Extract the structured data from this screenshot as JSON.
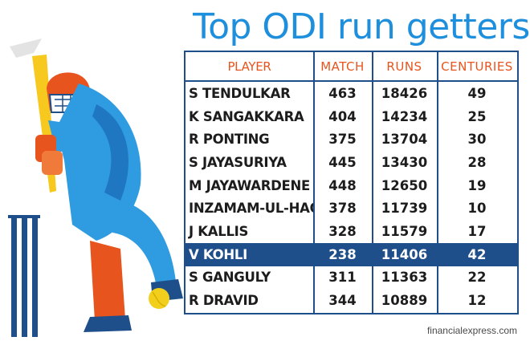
{
  "title": "Top ODI run getters",
  "watermark": "financialexpress.com",
  "colors": {
    "title": "#1d8fdc",
    "header": "#e8541d",
    "border": "#1f4f8a",
    "highlight": "#1f4f8a"
  },
  "highlight_player": "V KOHLI",
  "chart_data": {
    "type": "table",
    "title": "Top ODI run getters",
    "columns": [
      "PLAYER",
      "MATCH",
      "RUNS",
      "CENTURIES"
    ],
    "rows": [
      [
        "S TENDULKAR",
        "463",
        "18426",
        "49"
      ],
      [
        "K SANGAKKARA",
        "404",
        "14234",
        "25"
      ],
      [
        "R PONTING",
        "375",
        "13704",
        "30"
      ],
      [
        "S JAYASURIYA",
        "445",
        "13430",
        "28"
      ],
      [
        "M JAYAWARDENE",
        "448",
        "12650",
        "19"
      ],
      [
        "INZAMAM-UL-HAQ",
        "378",
        "11739",
        "10"
      ],
      [
        "J KALLIS",
        "328",
        "11579",
        "17"
      ],
      [
        "V KOHLI",
        "238",
        "11406",
        "42"
      ],
      [
        "S GANGULY",
        "311",
        "11363",
        "22"
      ],
      [
        "R DRAVID",
        "344",
        "10889",
        "12"
      ]
    ]
  }
}
